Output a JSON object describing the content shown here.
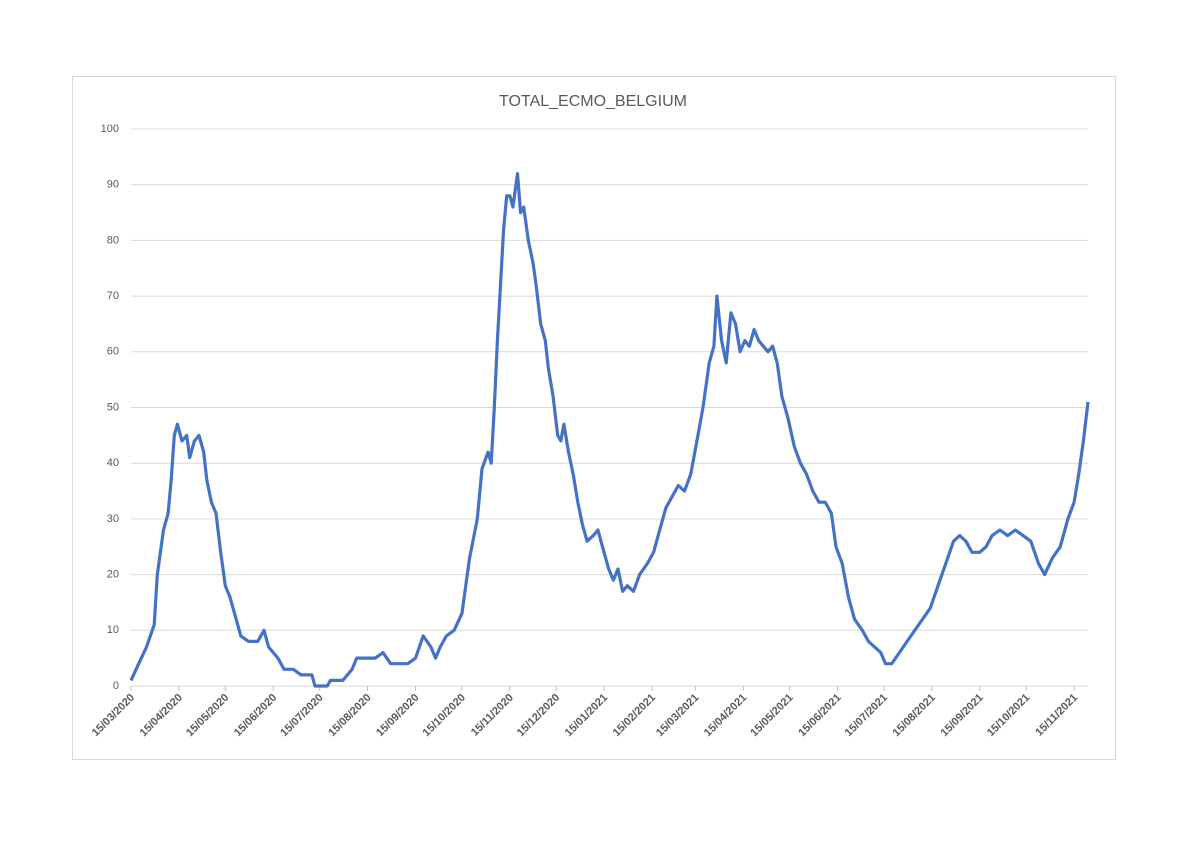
{
  "chart_data": {
    "type": "line",
    "title": "TOTAL_ECMO_BELGIUM",
    "x": [
      "15/03/2020",
      "20/03/2020",
      "25/03/2020",
      "30/03/2020",
      "01/04/2020",
      "05/04/2020",
      "08/04/2020",
      "10/04/2020",
      "12/04/2020",
      "14/04/2020",
      "17/04/2020",
      "20/04/2020",
      "22/04/2020",
      "25/04/2020",
      "28/04/2020",
      "01/05/2020",
      "03/05/2020",
      "06/05/2020",
      "09/05/2020",
      "12/05/2020",
      "15/05/2020",
      "18/05/2020",
      "21/05/2020",
      "25/05/2020",
      "30/05/2020",
      "05/06/2020",
      "09/06/2020",
      "12/06/2020",
      "18/06/2020",
      "22/06/2020",
      "28/06/2020",
      "03/07/2020",
      "10/07/2020",
      "12/07/2020",
      "20/07/2020",
      "22/07/2020",
      "30/07/2020",
      "05/08/2020",
      "08/08/2020",
      "15/08/2020",
      "20/08/2020",
      "25/08/2020",
      "30/08/2020",
      "05/09/2020",
      "10/09/2020",
      "15/09/2020",
      "20/09/2020",
      "25/09/2020",
      "28/09/2020",
      "01/10/2020",
      "05/10/2020",
      "10/10/2020",
      "15/10/2020",
      "20/10/2020",
      "25/10/2020",
      "28/10/2020",
      "01/11/2020",
      "03/11/2020",
      "05/11/2020",
      "07/11/2020",
      "09/11/2020",
      "11/11/2020",
      "13/11/2020",
      "15/11/2020",
      "17/11/2020",
      "20/11/2020",
      "22/11/2020",
      "24/11/2020",
      "27/11/2020",
      "30/11/2020",
      "02/12/2020",
      "05/12/2020",
      "08/12/2020",
      "10/12/2020",
      "13/12/2020",
      "16/12/2020",
      "18/12/2020",
      "20/12/2020",
      "23/12/2020",
      "26/12/2020",
      "29/12/2020",
      "01/01/2021",
      "04/01/2021",
      "08/01/2021",
      "11/01/2021",
      "14/01/2021",
      "18/01/2021",
      "21/01/2021",
      "24/01/2021",
      "27/01/2021",
      "30/01/2021",
      "03/02/2021",
      "07/02/2021",
      "12/02/2021",
      "16/02/2021",
      "20/02/2021",
      "24/02/2021",
      "28/02/2021",
      "04/03/2021",
      "08/03/2021",
      "12/03/2021",
      "16/03/2021",
      "20/03/2021",
      "24/03/2021",
      "27/03/2021",
      "29/03/2021",
      "01/04/2021",
      "04/04/2021",
      "07/04/2021",
      "10/04/2021",
      "13/04/2021",
      "16/04/2021",
      "19/04/2021",
      "22/04/2021",
      "25/04/2021",
      "28/04/2021",
      "01/05/2021",
      "04/05/2021",
      "07/05/2021",
      "10/05/2021",
      "14/05/2021",
      "18/05/2021",
      "22/05/2021",
      "26/05/2021",
      "30/05/2021",
      "03/06/2021",
      "07/06/2021",
      "11/06/2021",
      "14/06/2021",
      "18/06/2021",
      "22/06/2021",
      "26/06/2021",
      "01/07/2021",
      "05/07/2021",
      "09/07/2021",
      "13/07/2021",
      "16/07/2021",
      "20/07/2021",
      "25/07/2021",
      "30/07/2021",
      "04/08/2021",
      "09/08/2021",
      "14/08/2021",
      "19/08/2021",
      "24/08/2021",
      "29/08/2021",
      "02/09/2021",
      "06/09/2021",
      "10/09/2021",
      "15/09/2021",
      "19/09/2021",
      "23/09/2021",
      "28/09/2021",
      "03/10/2021",
      "08/10/2021",
      "13/10/2021",
      "18/10/2021",
      "23/10/2021",
      "27/10/2021",
      "01/11/2021",
      "06/11/2021",
      "11/11/2021",
      "15/11/2021",
      "18/11/2021",
      "21/11/2021",
      "24/11/2021"
    ],
    "series": [
      {
        "name": "TOTAL_ECMO_BELGIUM",
        "color": "#4472c4",
        "values": [
          1,
          4,
          7,
          11,
          20,
          28,
          31,
          37,
          45,
          47,
          44,
          45,
          41,
          44,
          45,
          42,
          37,
          33,
          31,
          24,
          18,
          16,
          13,
          9,
          8,
          8,
          10,
          7,
          5,
          3,
          3,
          2,
          2,
          0,
          0,
          1,
          1,
          3,
          5,
          5,
          5,
          6,
          4,
          4,
          4,
          5,
          9,
          7,
          5,
          7,
          9,
          10,
          13,
          23,
          30,
          39,
          42,
          40,
          50,
          62,
          72,
          82,
          88,
          88,
          86,
          92,
          85,
          86,
          80,
          76,
          72,
          65,
          62,
          57,
          52,
          45,
          44,
          47,
          42,
          38,
          33,
          29,
          26,
          27,
          28,
          25,
          21,
          19,
          21,
          17,
          18,
          17,
          20,
          22,
          24,
          28,
          32,
          34,
          36,
          35,
          38,
          44,
          50,
          58,
          61,
          70,
          62,
          58,
          67,
          65,
          60,
          62,
          61,
          64,
          62,
          61,
          60,
          61,
          58,
          52,
          48,
          43,
          40,
          38,
          35,
          33,
          33,
          31,
          25,
          22,
          16,
          12,
          10,
          8,
          7,
          6,
          4,
          4,
          6,
          8,
          10,
          12,
          14,
          18,
          22,
          26,
          27,
          26,
          24,
          24,
          25,
          27,
          28,
          27,
          28,
          27,
          26,
          22,
          20,
          23,
          25,
          30,
          33,
          38,
          44,
          51
        ]
      }
    ],
    "xlim": [
      "15/03/2020",
      "24/11/2021"
    ],
    "xticks": [
      "15/03/2020",
      "15/04/2020",
      "15/05/2020",
      "15/06/2020",
      "15/07/2020",
      "15/08/2020",
      "15/09/2020",
      "15/10/2020",
      "15/11/2020",
      "15/12/2020",
      "15/01/2021",
      "15/02/2021",
      "15/03/2021",
      "15/04/2021",
      "15/05/2021",
      "15/06/2021",
      "15/07/2021",
      "15/08/2021",
      "15/09/2021",
      "15/10/2021",
      "15/11/2021"
    ],
    "ylim": [
      0,
      100
    ],
    "yticks": [
      0,
      10,
      20,
      30,
      40,
      50,
      60,
      70,
      80,
      90,
      100
    ],
    "grid": true
  }
}
